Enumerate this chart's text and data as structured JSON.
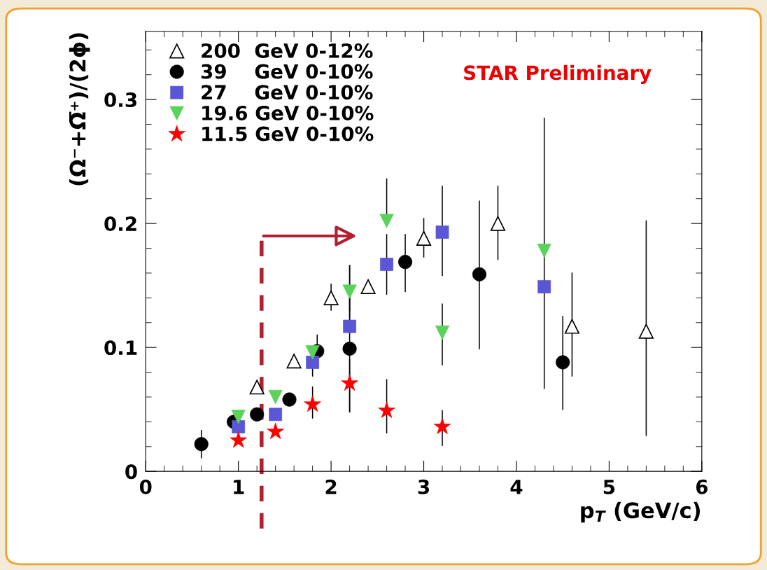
{
  "chart_data": {
    "type": "scatter",
    "xlabel": "p$_{T}$ (GeV/c)",
    "ylabel": "(Ω⁻+Ω̅⁺)/(2ϕ)",
    "xlim": [
      0,
      6
    ],
    "xticks": [
      0,
      1,
      2,
      3,
      4,
      5,
      6
    ],
    "ylim": [
      0,
      0.355
    ],
    "yticks": [
      0,
      0.1,
      0.2,
      0.3
    ],
    "grid": false,
    "legend": "top left",
    "annotations": [
      "STAR Preliminary"
    ],
    "ref_lines": [
      {
        "axis": "x",
        "value": 1.25,
        "color": "#b0202f",
        "line_style": "dashed"
      }
    ],
    "series": [
      {
        "name": "200  GeV 0-12%",
        "color": "#ffffff",
        "marker": "triangle",
        "x": [
          1.2,
          1.6,
          2.0,
          2.4,
          3.0,
          3.8,
          4.6,
          5.4
        ],
        "values": [
          0.068,
          0.089,
          0.14,
          0.149,
          0.188,
          0.2,
          0.117,
          0.113
        ],
        "errors": [
          null,
          null,
          [
            0.13,
            0.151
          ],
          null,
          [
            0.173,
            0.204
          ],
          [
            0.171,
            0.23
          ],
          [
            0.077,
            0.16
          ],
          [
            0.029,
            0.202
          ]
        ]
      },
      {
        "name": "39    GeV 0-10%",
        "color": "#000000",
        "marker": "circle",
        "x": [
          0.6,
          0.95,
          1.2,
          1.55,
          1.85,
          2.2,
          2.8,
          3.6,
          4.5
        ],
        "values": [
          0.022,
          0.04,
          0.046,
          0.058,
          0.097,
          0.099,
          0.169,
          0.159,
          0.088
        ],
        "errors": [
          [
            0.011,
            0.033
          ],
          null,
          null,
          null,
          [
            0.085,
            0.11
          ],
          [
            0.048,
            0.166
          ],
          [
            0.145,
            0.191
          ],
          [
            0.099,
            0.218
          ],
          [
            0.05,
            0.125
          ]
        ]
      },
      {
        "name": "27    GeV 0-10%",
        "color": "#5a56d6",
        "marker": "square",
        "x": [
          1.0,
          1.4,
          1.8,
          2.2,
          2.6,
          3.2,
          4.3
        ],
        "values": [
          0.036,
          0.046,
          0.088,
          0.117,
          0.167,
          0.193,
          0.149
        ],
        "errors": [
          null,
          null,
          [
            0.077,
            0.088
          ],
          [
            0.117,
            0.14
          ],
          [
            0.143,
            0.191
          ],
          [
            0.158,
            0.23
          ],
          [
            0.067,
            0.285
          ]
        ]
      },
      {
        "name": "19.6 GeV 0-10%",
        "color": "#5bd25a",
        "marker": "triangle_down",
        "x": [
          1.0,
          1.4,
          1.8,
          2.2,
          2.6,
          3.2,
          4.3
        ],
        "values": [
          0.044,
          0.06,
          0.096,
          0.145,
          0.202,
          0.112,
          0.178
        ],
        "errors": [
          null,
          null,
          null,
          [
            0.13,
            0.166
          ],
          [
            0.202,
            0.236
          ],
          [
            0.086,
            0.135
          ],
          null
        ]
      },
      {
        "name": "11.5 GeV 0-10%",
        "color": "#ff0000",
        "marker": "star",
        "x": [
          1.0,
          1.4,
          1.8,
          2.2,
          2.6,
          3.2
        ],
        "values": [
          0.025,
          0.032,
          0.054,
          0.071,
          0.049,
          0.036
        ],
        "errors": [
          null,
          null,
          [
            0.043,
            0.068
          ],
          [
            0.048,
            0.09
          ],
          [
            0.031,
            0.074
          ],
          [
            0.021,
            0.049
          ]
        ]
      }
    ]
  }
}
